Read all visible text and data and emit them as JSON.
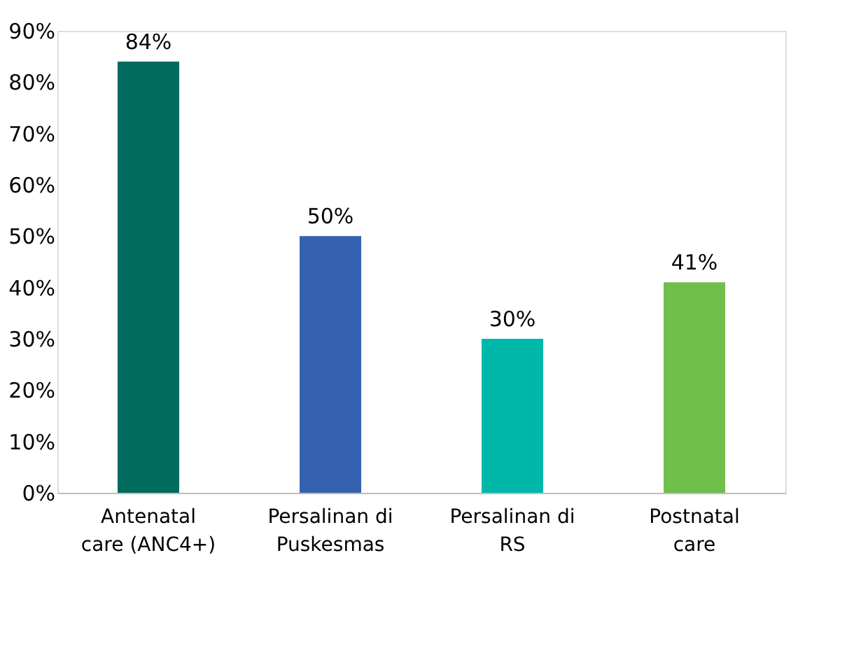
{
  "chart_data": {
    "type": "bar",
    "categories": [
      "Antenatal care (ANC4+)",
      "Persalinan di Puskesmas",
      "Persalinan di RS",
      "Postnatal care"
    ],
    "values": [
      84,
      50,
      30,
      41
    ],
    "colors": [
      "#006b5f",
      "#3562b0",
      "#00b8aa",
      "#70bf4b"
    ],
    "value_labels": [
      "84%",
      "50%",
      "30%",
      "41%"
    ],
    "ylim": [
      0,
      90
    ],
    "yticks": [
      {
        "value": 0,
        "label": "0%"
      },
      {
        "value": 10,
        "label": "10%"
      },
      {
        "value": 20,
        "label": "20%"
      },
      {
        "value": 30,
        "label": "30%"
      },
      {
        "value": 40,
        "label": "40%"
      },
      {
        "value": 50,
        "label": "50%"
      },
      {
        "value": 60,
        "label": "60%"
      },
      {
        "value": 70,
        "label": "70%"
      },
      {
        "value": 80,
        "label": "80%"
      },
      {
        "value": 90,
        "label": "90%"
      }
    ],
    "grid": false
  }
}
